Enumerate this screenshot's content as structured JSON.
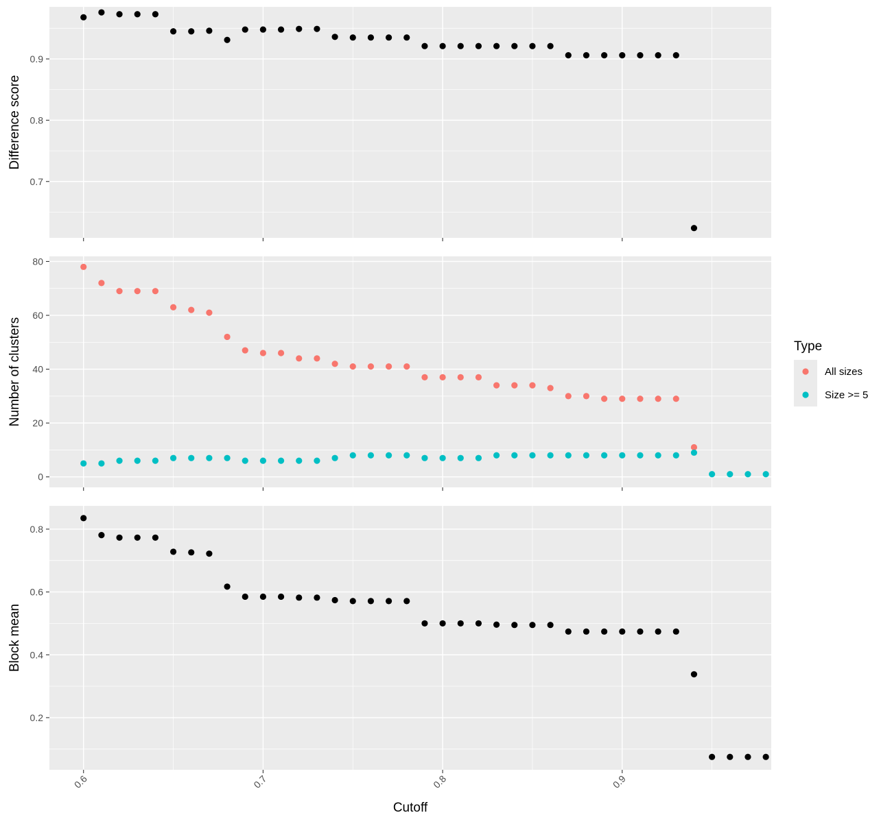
{
  "chart_data": {
    "type": "scatter",
    "x_label": "Cutoff",
    "x_range": [
      0.581,
      0.983
    ],
    "x_ticks": [
      0.6,
      0.7,
      0.8,
      0.9
    ],
    "x_tick_labels": [
      "0.6",
      "0.7",
      "0.8",
      "0.9"
    ],
    "grid": true,
    "legend": {
      "title": "Type",
      "placement": "right",
      "entries": [
        {
          "label": "All sizes",
          "color": "#f8766d"
        },
        {
          "label": "Size >= 5",
          "color": "#00bfc4"
        }
      ]
    },
    "colors": {
      "panel_bg": "#ebebeb",
      "grid": "#ffffff",
      "point_default": "#000000"
    },
    "panels": [
      {
        "ylabel": "Difference score",
        "y_range": [
          0.608,
          0.985
        ],
        "y_ticks": [
          0.7,
          0.8,
          0.9
        ],
        "y_tick_labels": [
          "0.7",
          "0.8",
          "0.9"
        ],
        "series": [
          {
            "color": "#000000",
            "x": [
              0.6,
              0.61,
              0.62,
              0.63,
              0.64,
              0.65,
              0.66,
              0.67,
              0.68,
              0.69,
              0.7,
              0.71,
              0.72,
              0.73,
              0.74,
              0.75,
              0.76,
              0.77,
              0.78,
              0.79,
              0.8,
              0.81,
              0.82,
              0.83,
              0.84,
              0.85,
              0.86,
              0.87,
              0.88,
              0.89,
              0.9,
              0.91,
              0.92,
              0.93,
              0.94
            ],
            "y": [
              0.968,
              0.976,
              0.973,
              0.973,
              0.973,
              0.945,
              0.945,
              0.946,
              0.931,
              0.948,
              0.948,
              0.948,
              0.949,
              0.949,
              0.936,
              0.935,
              0.935,
              0.935,
              0.935,
              0.921,
              0.921,
              0.921,
              0.921,
              0.921,
              0.921,
              0.921,
              0.921,
              0.906,
              0.906,
              0.906,
              0.906,
              0.906,
              0.906,
              0.906,
              0.624
            ]
          }
        ]
      },
      {
        "ylabel": "Number of clusters",
        "y_range": [
          -3.9,
          81.9
        ],
        "y_ticks": [
          0,
          20,
          40,
          60,
          80
        ],
        "y_tick_labels": [
          "0",
          "20",
          "40",
          "60",
          "80"
        ],
        "series": [
          {
            "name": "All sizes",
            "color": "#f8766d",
            "x": [
              0.6,
              0.61,
              0.62,
              0.63,
              0.64,
              0.65,
              0.66,
              0.67,
              0.68,
              0.69,
              0.7,
              0.71,
              0.72,
              0.73,
              0.74,
              0.75,
              0.76,
              0.77,
              0.78,
              0.79,
              0.8,
              0.81,
              0.82,
              0.83,
              0.84,
              0.85,
              0.86,
              0.87,
              0.88,
              0.89,
              0.9,
              0.91,
              0.92,
              0.93,
              0.94
            ],
            "y": [
              78,
              72,
              69,
              69,
              69,
              63,
              62,
              61,
              52,
              47,
              46,
              46,
              44,
              44,
              42,
              41,
              41,
              41,
              41,
              37,
              37,
              37,
              37,
              34,
              34,
              34,
              33,
              30,
              30,
              29,
              29,
              29,
              29,
              29,
              11
            ]
          },
          {
            "name": "Size >= 5",
            "color": "#00bfc4",
            "x": [
              0.6,
              0.61,
              0.62,
              0.63,
              0.64,
              0.65,
              0.66,
              0.67,
              0.68,
              0.69,
              0.7,
              0.71,
              0.72,
              0.73,
              0.74,
              0.75,
              0.76,
              0.77,
              0.78,
              0.79,
              0.8,
              0.81,
              0.82,
              0.83,
              0.84,
              0.85,
              0.86,
              0.87,
              0.88,
              0.89,
              0.9,
              0.91,
              0.92,
              0.93,
              0.94,
              0.95,
              0.96,
              0.97,
              0.98
            ],
            "y": [
              5,
              5,
              6,
              6,
              6,
              7,
              7,
              7,
              7,
              6,
              6,
              6,
              6,
              6,
              7,
              8,
              8,
              8,
              8,
              7,
              7,
              7,
              7,
              8,
              8,
              8,
              8,
              8,
              8,
              8,
              8,
              8,
              8,
              8,
              9,
              1,
              1,
              1,
              1
            ]
          }
        ]
      },
      {
        "ylabel": "Block mean",
        "y_range": [
          0.034,
          0.874
        ],
        "y_ticks": [
          0.2,
          0.4,
          0.6,
          0.8
        ],
        "y_tick_labels": [
          "0.2",
          "0.4",
          "0.6",
          "0.8"
        ],
        "series": [
          {
            "color": "#000000",
            "x": [
              0.6,
              0.61,
              0.62,
              0.63,
              0.64,
              0.65,
              0.66,
              0.67,
              0.68,
              0.69,
              0.7,
              0.71,
              0.72,
              0.73,
              0.74,
              0.75,
              0.76,
              0.77,
              0.78,
              0.79,
              0.8,
              0.81,
              0.82,
              0.83,
              0.84,
              0.85,
              0.86,
              0.87,
              0.88,
              0.89,
              0.9,
              0.91,
              0.92,
              0.93,
              0.94,
              0.95,
              0.96,
              0.97,
              0.98
            ],
            "y": [
              0.835,
              0.781,
              0.773,
              0.773,
              0.773,
              0.728,
              0.726,
              0.722,
              0.617,
              0.585,
              0.585,
              0.585,
              0.582,
              0.582,
              0.574,
              0.571,
              0.571,
              0.571,
              0.571,
              0.5,
              0.5,
              0.5,
              0.5,
              0.496,
              0.495,
              0.495,
              0.495,
              0.474,
              0.474,
              0.474,
              0.474,
              0.474,
              0.474,
              0.474,
              0.338,
              0.075,
              0.075,
              0.075,
              0.075
            ]
          }
        ]
      }
    ]
  }
}
